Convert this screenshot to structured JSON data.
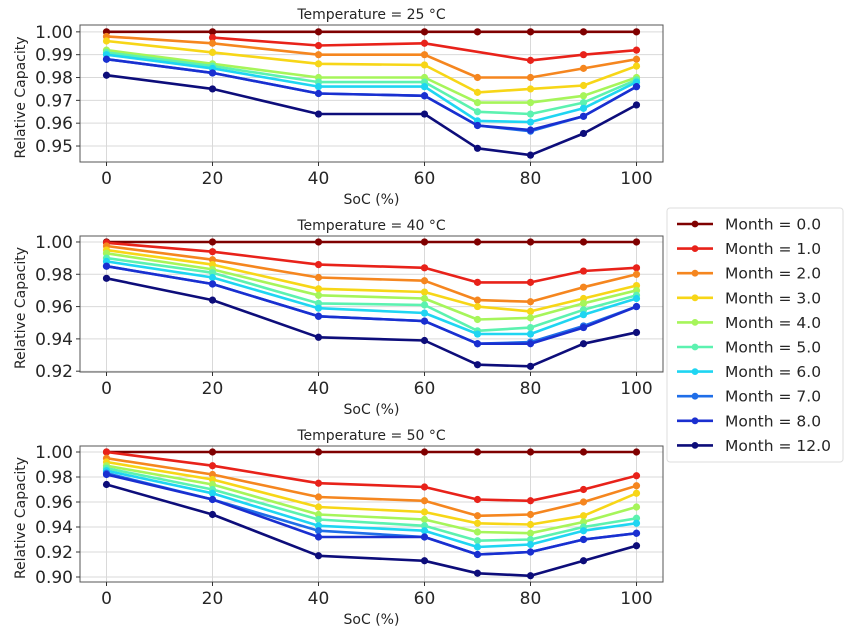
{
  "figure": {
    "legend_location": "right-center (outside plots)",
    "legend": [
      {
        "label": "Month = 0.0",
        "color": "#7f0000"
      },
      {
        "label": "Month = 1.0",
        "color": "#e8221a"
      },
      {
        "label": "Month = 2.0",
        "color": "#f5861f"
      },
      {
        "label": "Month = 3.0",
        "color": "#f7d617"
      },
      {
        "label": "Month = 4.0",
        "color": "#a6f55a"
      },
      {
        "label": "Month = 5.0",
        "color": "#5cf2b0"
      },
      {
        "label": "Month = 6.0",
        "color": "#1fd5f2"
      },
      {
        "label": "Month = 7.0",
        "color": "#1f6ee8"
      },
      {
        "label": "Month = 8.0",
        "color": "#1a2fd0"
      },
      {
        "label": "Month = 12.0",
        "color": "#0d0d7a"
      }
    ]
  },
  "chart_data": [
    {
      "type": "line",
      "title": "Temperature = 25 °C",
      "xlabel": "SoC (%)",
      "ylabel": "Relative Capacity",
      "xlim": [
        -5,
        105
      ],
      "ylim": [
        0.943,
        1.003
      ],
      "xticks": [
        0,
        20,
        40,
        60,
        80,
        100
      ],
      "xtick_labels": [
        "0",
        "20",
        "40",
        "60",
        "80",
        "100"
      ],
      "yticks": [
        0.95,
        0.96,
        0.97,
        0.98,
        0.99,
        1.0
      ],
      "ytick_labels": [
        "0.95",
        "0.96",
        "0.97",
        "0.98",
        "0.99",
        "1.00"
      ],
      "grid": true,
      "series": [
        {
          "name": "Month = 0.0",
          "x": [
            0,
            20,
            40,
            60,
            70,
            80,
            90,
            100
          ],
          "values": [
            1.0,
            1.0,
            1.0,
            1.0,
            1.0,
            1.0,
            1.0,
            1.0
          ]
        },
        {
          "name": "Month = 1.0",
          "x": [
            20,
            40,
            60,
            80,
            90,
            100
          ],
          "values": [
            0.9975,
            0.994,
            0.995,
            0.9875,
            0.99,
            0.992
          ]
        },
        {
          "name": "Month = 2.0",
          "x": [
            0,
            20,
            40,
            60,
            70,
            80,
            90,
            100
          ],
          "values": [
            0.998,
            0.995,
            0.99,
            0.99,
            0.98,
            0.98,
            0.984,
            0.988
          ]
        },
        {
          "name": "Month = 3.0",
          "x": [
            0,
            20,
            40,
            60,
            70,
            80,
            90,
            100
          ],
          "values": [
            0.996,
            0.991,
            0.986,
            0.9855,
            0.9735,
            0.975,
            0.9765,
            0.985
          ]
        },
        {
          "name": "Month = 4.0",
          "x": [
            0,
            20,
            40,
            60,
            70,
            80,
            90,
            100
          ],
          "values": [
            0.992,
            0.986,
            0.98,
            0.98,
            0.969,
            0.969,
            0.972,
            0.98
          ]
        },
        {
          "name": "Month = 5.0",
          "x": [
            0,
            20,
            40,
            60,
            70,
            80,
            90,
            100
          ],
          "values": [
            0.991,
            0.985,
            0.978,
            0.978,
            0.965,
            0.964,
            0.969,
            0.979
          ]
        },
        {
          "name": "Month = 6.0",
          "x": [
            0,
            20,
            40,
            60,
            70,
            80,
            90,
            100
          ],
          "values": [
            0.99,
            0.984,
            0.976,
            0.976,
            0.961,
            0.9605,
            0.9665,
            0.978
          ]
        },
        {
          "name": "Month = 7.0",
          "x": [
            0,
            20,
            40,
            60,
            70,
            80,
            90,
            100
          ],
          "values": [
            0.988,
            0.982,
            0.973,
            0.972,
            0.959,
            0.9565,
            0.963,
            0.976
          ]
        },
        {
          "name": "Month = 8.0",
          "x": [
            0,
            20,
            40,
            60,
            70,
            80,
            90,
            100
          ],
          "values": [
            0.988,
            0.982,
            0.973,
            0.972,
            0.959,
            0.957,
            0.963,
            0.976
          ]
        },
        {
          "name": "Month = 12.0",
          "x": [
            0,
            20,
            40,
            60,
            70,
            80,
            90,
            100
          ],
          "values": [
            0.981,
            0.975,
            0.964,
            0.964,
            0.949,
            0.946,
            0.9555,
            0.968
          ]
        }
      ]
    },
    {
      "type": "line",
      "title": "Temperature = 40 °C",
      "xlabel": "SoC (%)",
      "ylabel": "Relative Capacity",
      "xlim": [
        -5,
        105
      ],
      "ylim": [
        0.9195,
        1.0037
      ],
      "xticks": [
        0,
        20,
        40,
        60,
        80,
        100
      ],
      "xtick_labels": [
        "0",
        "20",
        "40",
        "60",
        "80",
        "100"
      ],
      "yticks": [
        0.92,
        0.94,
        0.96,
        0.98,
        1.0
      ],
      "ytick_labels": [
        "0.92",
        "0.94",
        "0.96",
        "0.98",
        "1.00"
      ],
      "grid": true,
      "series": [
        {
          "name": "Month = 0.0",
          "x": [
            0,
            20,
            40,
            60,
            70,
            80,
            90,
            100
          ],
          "values": [
            1.0,
            1.0,
            1.0,
            1.0,
            1.0,
            1.0,
            1.0,
            1.0
          ]
        },
        {
          "name": "Month = 1.0",
          "x": [
            0,
            20,
            40,
            60,
            70,
            80,
            90,
            100
          ],
          "values": [
            0.9995,
            0.994,
            0.986,
            0.984,
            0.975,
            0.975,
            0.982,
            0.984
          ]
        },
        {
          "name": "Month = 2.0",
          "x": [
            0,
            20,
            40,
            60,
            70,
            80,
            90,
            100
          ],
          "values": [
            0.9975,
            0.989,
            0.978,
            0.976,
            0.964,
            0.963,
            0.972,
            0.98
          ]
        },
        {
          "name": "Month = 3.0",
          "x": [
            0,
            20,
            40,
            60,
            70,
            80,
            90,
            100
          ],
          "values": [
            0.995,
            0.986,
            0.971,
            0.969,
            0.96,
            0.957,
            0.965,
            0.973
          ]
        },
        {
          "name": "Month = 4.0",
          "x": [
            0,
            20,
            40,
            60,
            70,
            80,
            90,
            100
          ],
          "values": [
            0.993,
            0.983,
            0.967,
            0.965,
            0.952,
            0.953,
            0.962,
            0.97
          ]
        },
        {
          "name": "Month = 5.0",
          "x": [
            0,
            20,
            40,
            60,
            70,
            80,
            90,
            100
          ],
          "values": [
            0.99,
            0.981,
            0.962,
            0.961,
            0.945,
            0.947,
            0.958,
            0.967
          ]
        },
        {
          "name": "Month = 6.0",
          "x": [
            0,
            20,
            40,
            60,
            70,
            80,
            90,
            100
          ],
          "values": [
            0.988,
            0.978,
            0.959,
            0.956,
            0.943,
            0.943,
            0.955,
            0.965
          ]
        },
        {
          "name": "Month = 7.0",
          "x": [
            0,
            20,
            40,
            60,
            70,
            80,
            90,
            100
          ],
          "values": [
            0.985,
            0.974,
            0.954,
            0.951,
            0.937,
            0.938,
            0.948,
            0.96
          ]
        },
        {
          "name": "Month = 8.0",
          "x": [
            0,
            20,
            40,
            60,
            70,
            80,
            90,
            100
          ],
          "values": [
            0.985,
            0.974,
            0.954,
            0.951,
            0.937,
            0.937,
            0.947,
            0.96
          ]
        },
        {
          "name": "Month = 12.0",
          "x": [
            0,
            20,
            40,
            60,
            70,
            80,
            90,
            100
          ],
          "values": [
            0.9775,
            0.964,
            0.941,
            0.939,
            0.924,
            0.923,
            0.937,
            0.944
          ]
        }
      ]
    },
    {
      "type": "line",
      "title": "Temperature = 50 °C",
      "xlabel": "SoC (%)",
      "ylabel": "Relative Capacity",
      "xlim": [
        -5,
        105
      ],
      "ylim": [
        0.896,
        1.0048
      ],
      "xticks": [
        0,
        20,
        40,
        60,
        80,
        100
      ],
      "xtick_labels": [
        "0",
        "20",
        "40",
        "60",
        "80",
        "100"
      ],
      "yticks": [
        0.9,
        0.92,
        0.94,
        0.96,
        0.98,
        1.0
      ],
      "ytick_labels": [
        "0.90",
        "0.92",
        "0.94",
        "0.96",
        "0.98",
        "1.00"
      ],
      "grid": true,
      "series": [
        {
          "name": "Month = 0.0",
          "x": [
            0,
            20,
            40,
            60,
            70,
            80,
            90,
            100
          ],
          "values": [
            1.0,
            1.0,
            1.0,
            1.0,
            1.0,
            1.0,
            1.0,
            1.0
          ]
        },
        {
          "name": "Month = 1.0",
          "x": [
            0,
            20,
            40,
            60,
            70,
            80,
            90,
            100
          ],
          "values": [
            1.0,
            0.989,
            0.975,
            0.972,
            0.962,
            0.961,
            0.97,
            0.981
          ]
        },
        {
          "name": "Month = 2.0",
          "x": [
            0,
            20,
            40,
            60,
            70,
            80,
            90,
            100
          ],
          "values": [
            0.995,
            0.982,
            0.964,
            0.961,
            0.949,
            0.95,
            0.96,
            0.973
          ]
        },
        {
          "name": "Month = 3.0",
          "x": [
            0,
            20,
            40,
            60,
            70,
            80,
            90,
            100
          ],
          "values": [
            0.992,
            0.978,
            0.956,
            0.952,
            0.943,
            0.942,
            0.949,
            0.967
          ]
        },
        {
          "name": "Month = 4.0",
          "x": [
            0,
            20,
            40,
            60,
            70,
            80,
            90,
            100
          ],
          "values": [
            0.989,
            0.974,
            0.95,
            0.946,
            0.936,
            0.935,
            0.944,
            0.956
          ]
        },
        {
          "name": "Month = 5.0",
          "x": [
            0,
            20,
            40,
            60,
            70,
            80,
            90,
            100
          ],
          "values": [
            0.987,
            0.97,
            0.946,
            0.941,
            0.929,
            0.93,
            0.94,
            0.947
          ]
        },
        {
          "name": "Month = 6.0",
          "x": [
            0,
            20,
            40,
            60,
            70,
            80,
            90,
            100
          ],
          "values": [
            0.985,
            0.967,
            0.941,
            0.937,
            0.924,
            0.926,
            0.937,
            0.943
          ]
        },
        {
          "name": "Month = 7.0",
          "x": [
            0,
            20,
            40,
            60,
            70,
            80,
            90,
            100
          ],
          "values": [
            0.983,
            0.962,
            0.937,
            0.932,
            0.918,
            0.92,
            0.93,
            0.935
          ]
        },
        {
          "name": "Month = 8.0",
          "x": [
            0,
            20,
            40,
            60,
            70,
            80,
            90,
            100
          ],
          "values": [
            0.982,
            0.962,
            0.932,
            0.932,
            0.918,
            0.92,
            0.93,
            0.935
          ]
        },
        {
          "name": "Month = 12.0",
          "x": [
            0,
            20,
            40,
            60,
            70,
            80,
            90,
            100
          ],
          "values": [
            0.974,
            0.95,
            0.917,
            0.913,
            0.903,
            0.901,
            0.913,
            0.925
          ]
        }
      ]
    }
  ]
}
